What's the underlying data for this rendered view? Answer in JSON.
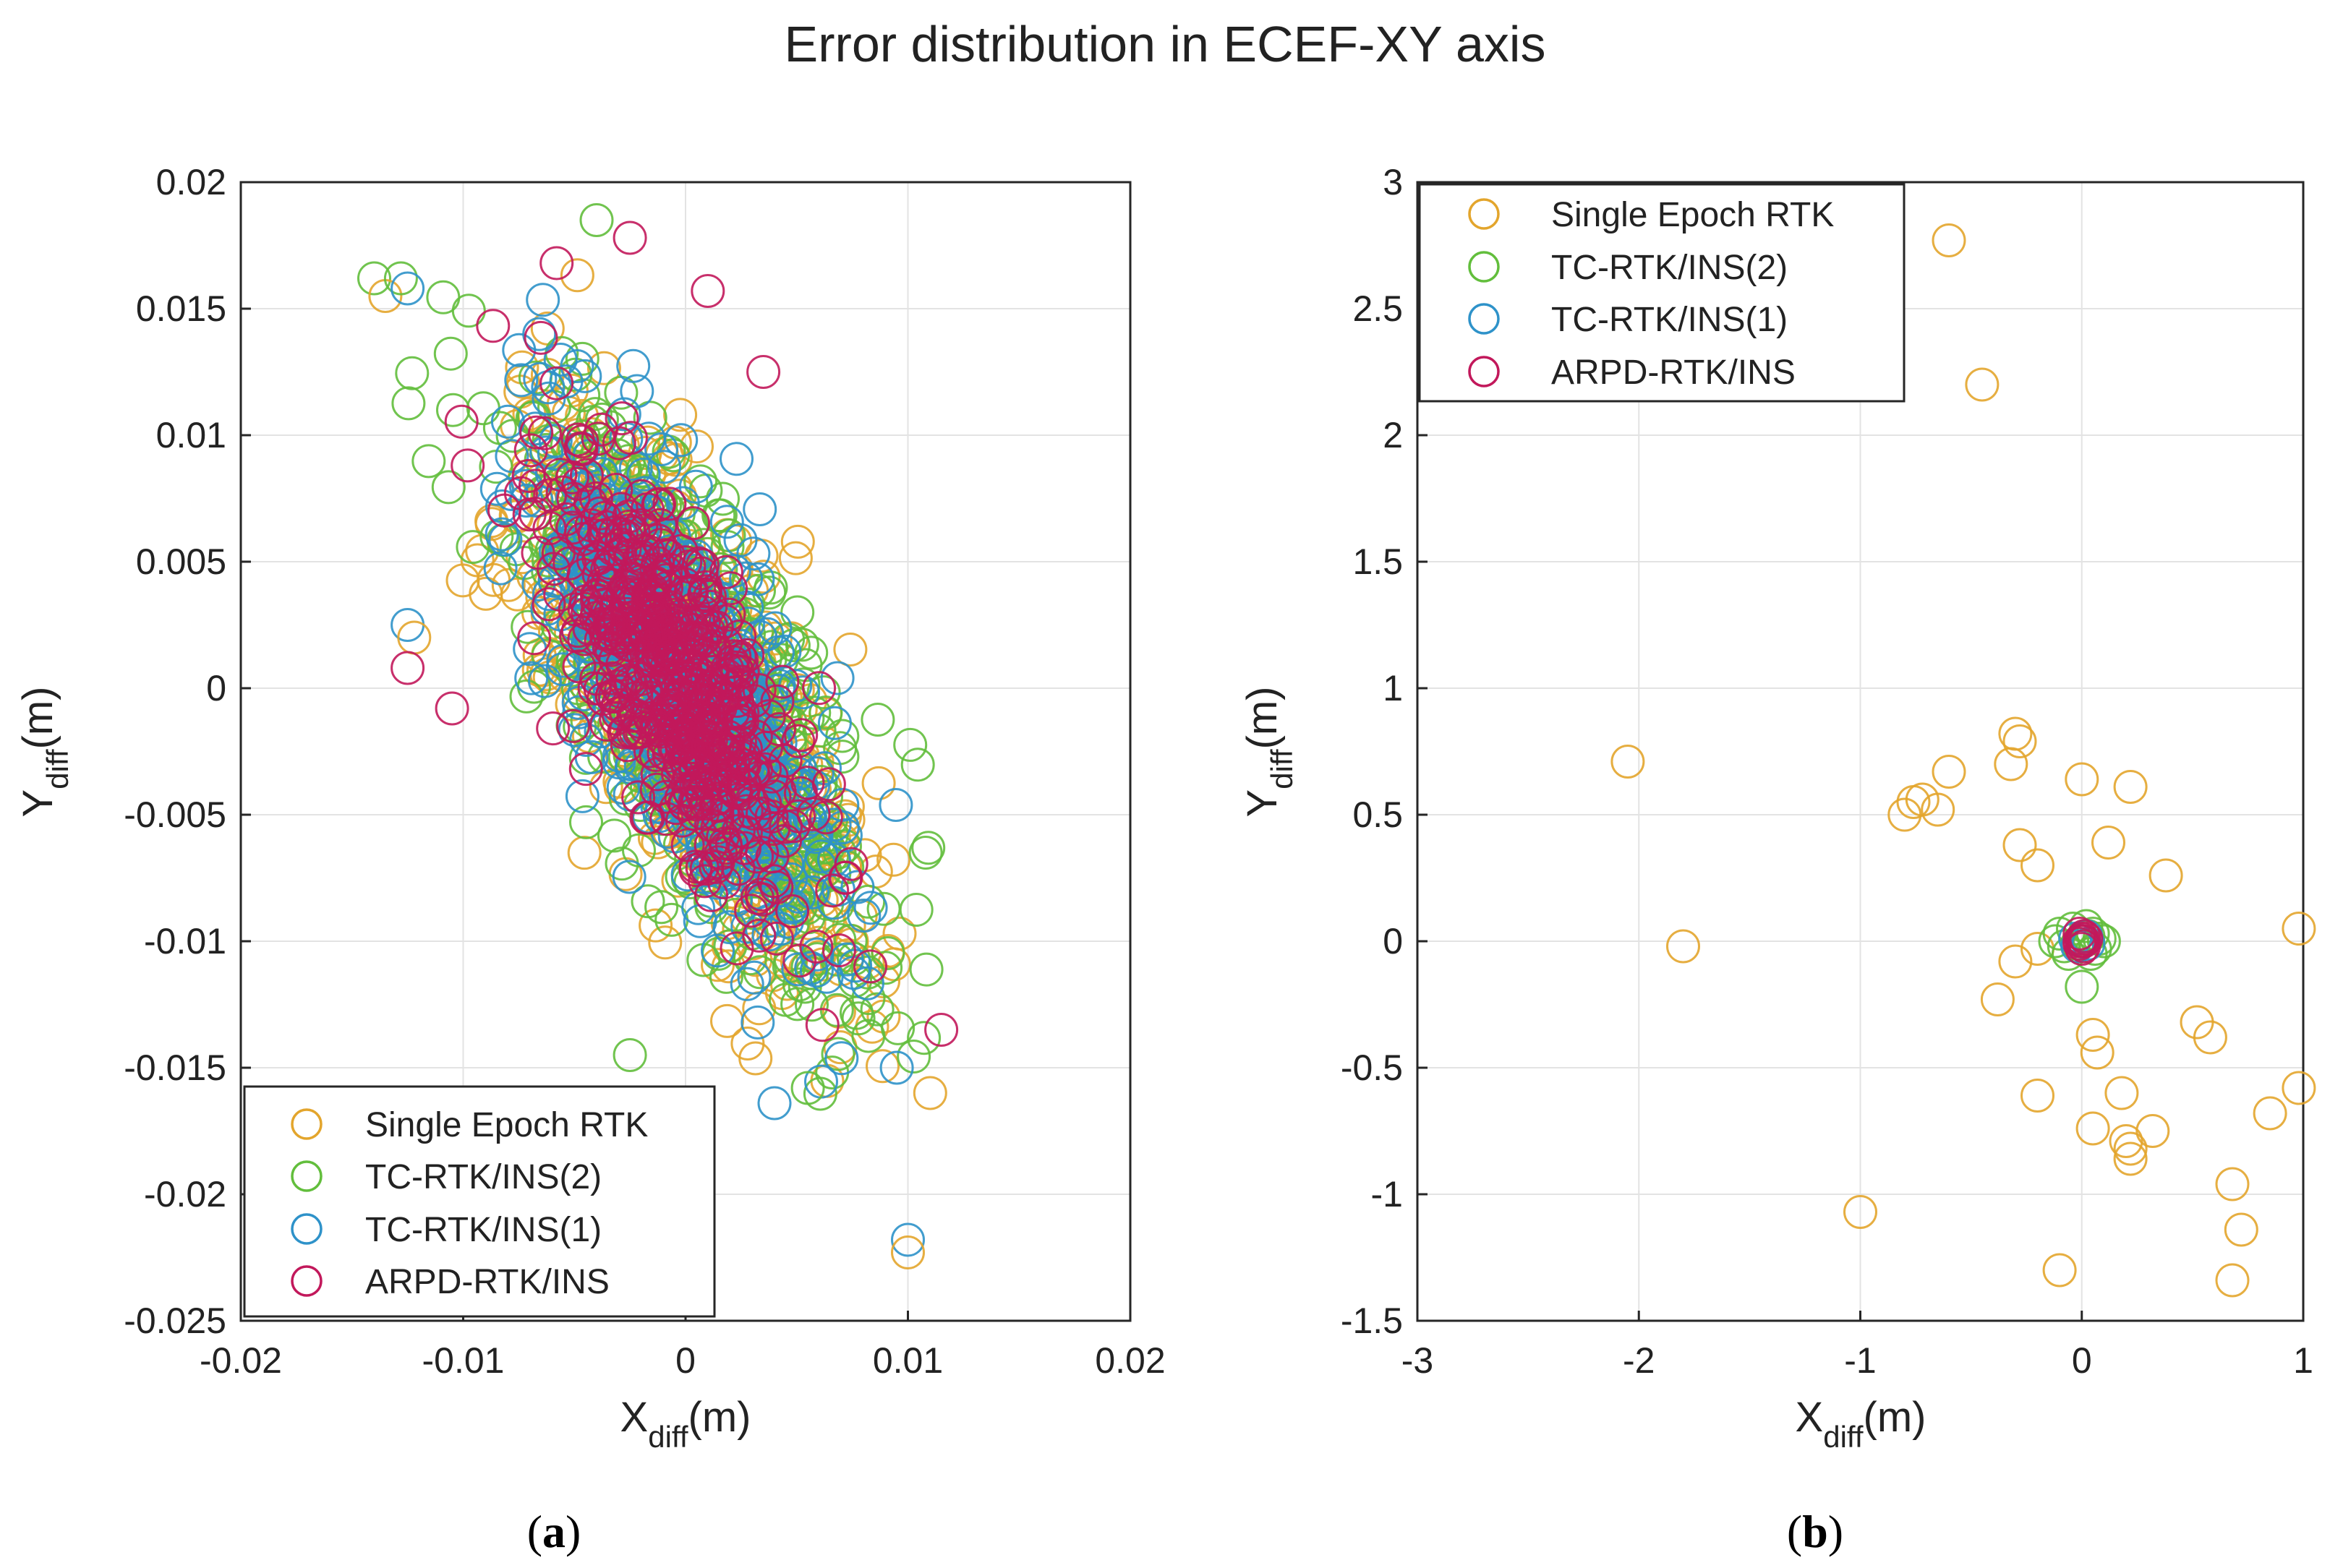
{
  "figure": {
    "title": "Error distribution in ECEF-XY axis",
    "captions": [
      {
        "open": "(",
        "letter": "a",
        "close": ")"
      },
      {
        "open": "(",
        "letter": "b",
        "close": ")"
      }
    ]
  },
  "colors": {
    "single_epoch_rtk": "#E3A52C",
    "tc_rtk_ins_2": "#62BE3C",
    "tc_rtk_ins_1": "#2E92C9",
    "arpd_rtk_ins": "#C2185B",
    "grid": "#e3e3e3",
    "axis": "#262626"
  },
  "chart_data": [
    {
      "type": "scatter",
      "panel": "a",
      "title": "",
      "xlabel": {
        "main": "X",
        "sub": "diff",
        "unit": "(m)"
      },
      "ylabel": {
        "main": "Y",
        "sub": "diff",
        "unit": "(m)"
      },
      "xlim": [
        -0.02,
        0.02
      ],
      "ylim": [
        -0.025,
        0.02
      ],
      "xticks": [
        -0.02,
        -0.01,
        0,
        0.01,
        0.02
      ],
      "xtick_labels": [
        "-0.02",
        "-0.01",
        "0",
        "0.01",
        "0.02"
      ],
      "yticks": [
        -0.025,
        -0.02,
        -0.015,
        -0.01,
        -0.005,
        0,
        0.005,
        0.01,
        0.015,
        0.02
      ],
      "ytick_labels": [
        "-0.025",
        "-0.02",
        "-0.015",
        "-0.01",
        "-0.005",
        "0",
        "0.005",
        "0.01",
        "0.015",
        "0.02"
      ],
      "grid": true,
      "legend_position": "bottom-left",
      "legend": [
        "Single Epoch RTK",
        "TC-RTK/INS(2)",
        "TC-RTK/INS(1)",
        "ARPD-RTK/INS"
      ],
      "cloud": {
        "description_note": "dense elliptical point cloud per series, estimated from the figure",
        "series": [
          {
            "name": "Single Epoch RTK",
            "color_key": "single_epoch_rtk",
            "n": 700,
            "mean": [
              0.0,
              0.0
            ],
            "sd_major": 0.0062,
            "sd_minor": 0.0023,
            "angle_deg": -60,
            "seed": 11
          },
          {
            "name": "TC-RTK/INS(2)",
            "color_key": "tc_rtk_ins_2",
            "n": 700,
            "mean": [
              0.0,
              0.0
            ],
            "sd_major": 0.0062,
            "sd_minor": 0.0023,
            "angle_deg": -60,
            "seed": 23
          },
          {
            "name": "TC-RTK/INS(1)",
            "color_key": "tc_rtk_ins_1",
            "n": 650,
            "mean": [
              0.0,
              0.0
            ],
            "sd_major": 0.0057,
            "sd_minor": 0.0021,
            "angle_deg": -60,
            "seed": 37
          },
          {
            "name": "ARPD-RTK/INS",
            "color_key": "arpd_rtk_ins",
            "n": 600,
            "mean": [
              -0.0005,
              0.0005
            ],
            "sd_major": 0.0047,
            "sd_minor": 0.0017,
            "angle_deg": -62,
            "seed": 53
          }
        ]
      },
      "outliers": [
        {
          "series": "TC-RTK/INS(2)",
          "x": -0.014,
          "y": 0.0162
        },
        {
          "series": "Single Epoch RTK",
          "x": -0.0135,
          "y": 0.0155
        },
        {
          "series": "TC-RTK/INS(2)",
          "x": -0.0128,
          "y": 0.0162
        },
        {
          "series": "TC-RTK/INS(1)",
          "x": -0.0125,
          "y": 0.0158
        },
        {
          "series": "TC-RTK/INS(2)",
          "x": -0.004,
          "y": 0.0185
        },
        {
          "series": "ARPD-RTK/INS",
          "x": -0.0025,
          "y": 0.0178
        },
        {
          "series": "ARPD-RTK/INS",
          "x": 0.001,
          "y": 0.0157
        },
        {
          "series": "ARPD-RTK/INS",
          "x": -0.0058,
          "y": 0.0168
        },
        {
          "series": "TC-RTK/INS(1)",
          "x": -0.0125,
          "y": 0.0025
        },
        {
          "series": "Single Epoch RTK",
          "x": -0.0122,
          "y": 0.002
        },
        {
          "series": "ARPD-RTK/INS",
          "x": -0.0125,
          "y": 0.0008
        },
        {
          "series": "ARPD-RTK/INS",
          "x": -0.0105,
          "y": -0.0008
        },
        {
          "series": "TC-RTK/INS(1)",
          "x": 0.01,
          "y": -0.0218
        },
        {
          "series": "Single Epoch RTK",
          "x": 0.01,
          "y": -0.0223
        },
        {
          "series": "ARPD-RTK/INS",
          "x": 0.0115,
          "y": -0.0135
        },
        {
          "series": "Single Epoch RTK",
          "x": 0.011,
          "y": -0.016
        },
        {
          "series": "TC-RTK/INS(1)",
          "x": 0.0095,
          "y": -0.015
        },
        {
          "series": "TC-RTK/INS(2)",
          "x": 0.0055,
          "y": -0.0158
        },
        {
          "series": "TC-RTK/INS(1)",
          "x": 0.004,
          "y": -0.0164
        },
        {
          "series": "TC-RTK/INS(2)",
          "x": -0.0025,
          "y": -0.0145
        },
        {
          "series": "ARPD-RTK/INS",
          "x": 0.0035,
          "y": 0.0125
        },
        {
          "series": "TC-RTK/INS(2)",
          "x": 0.0108,
          "y": -0.0065
        }
      ]
    },
    {
      "type": "scatter",
      "panel": "b",
      "title": "",
      "xlabel": {
        "main": "X",
        "sub": "diff",
        "unit": "(m)"
      },
      "ylabel": {
        "main": "Y",
        "sub": "diff",
        "unit": "(m)"
      },
      "xlim": [
        -3,
        1
      ],
      "ylim": [
        -1.5,
        3
      ],
      "xticks": [
        -3,
        -2,
        -1,
        0,
        1
      ],
      "xtick_labels": [
        "-3",
        "-2",
        "-1",
        "0",
        "1"
      ],
      "yticks": [
        -1.5,
        -1,
        -0.5,
        0,
        0.5,
        1,
        1.5,
        2,
        2.5,
        3
      ],
      "ytick_labels": [
        "-1.5",
        "-1",
        "-0.5",
        "0",
        "0.5",
        "1",
        "1.5",
        "2",
        "2.5",
        "3"
      ],
      "grid": true,
      "legend_position": "top-left",
      "legend": [
        "Single Epoch RTK",
        "TC-RTK/INS(2)",
        "TC-RTK/INS(1)",
        "ARPD-RTK/INS"
      ],
      "series": [
        {
          "name": "Single Epoch RTK",
          "color_key": "single_epoch_rtk",
          "points": [
            [
              -0.6,
              2.77
            ],
            [
              -0.45,
              2.2
            ],
            [
              -2.05,
              0.71
            ],
            [
              -1.8,
              -0.02
            ],
            [
              -0.3,
              0.82
            ],
            [
              -0.28,
              0.79
            ],
            [
              -0.32,
              0.7
            ],
            [
              0.0,
              0.64
            ],
            [
              0.22,
              0.61
            ],
            [
              -0.6,
              0.67
            ],
            [
              -0.72,
              0.56
            ],
            [
              -0.76,
              0.55
            ],
            [
              -0.8,
              0.5
            ],
            [
              -0.65,
              0.52
            ],
            [
              -0.28,
              0.38
            ],
            [
              -0.2,
              0.3
            ],
            [
              0.12,
              0.39
            ],
            [
              0.38,
              0.26
            ],
            [
              0.98,
              0.05
            ],
            [
              -0.2,
              -0.03
            ],
            [
              -0.3,
              -0.08
            ],
            [
              -0.38,
              -0.23
            ],
            [
              0.05,
              -0.37
            ],
            [
              0.07,
              -0.44
            ],
            [
              0.18,
              -0.6
            ],
            [
              -0.2,
              -0.61
            ],
            [
              0.05,
              -0.74
            ],
            [
              0.2,
              -0.79
            ],
            [
              0.22,
              -0.82
            ],
            [
              0.22,
              -0.86
            ],
            [
              0.32,
              -0.75
            ],
            [
              0.52,
              -0.32
            ],
            [
              0.58,
              -0.38
            ],
            [
              0.98,
              -0.58
            ],
            [
              0.85,
              -0.68
            ],
            [
              0.68,
              -0.96
            ],
            [
              0.72,
              -1.14
            ],
            [
              0.68,
              -1.34
            ],
            [
              -1.0,
              -1.07
            ],
            [
              -0.1,
              -1.3
            ]
          ]
        },
        {
          "name": "TC-RTK/INS(2)",
          "color_key": "tc_rtk_ins_2",
          "points": [
            [
              -0.1,
              0.03
            ],
            [
              0.05,
              0.03
            ],
            [
              0.08,
              0.01
            ],
            [
              -0.08,
              -0.02
            ],
            [
              0.06,
              -0.03
            ],
            [
              0.02,
              0.06
            ],
            [
              -0.04,
              0.05
            ],
            [
              -0.06,
              -0.05
            ],
            [
              0.04,
              -0.05
            ],
            [
              0.0,
              -0.18
            ],
            [
              0.1,
              0.0
            ],
            [
              -0.12,
              0.0
            ],
            [
              0.03,
              0.02
            ],
            [
              -0.02,
              -0.01
            ]
          ]
        },
        {
          "name": "TC-RTK/INS(1)",
          "color_key": "tc_rtk_ins_1",
          "points": [
            [
              0.0,
              0.0
            ],
            [
              0.02,
              0.02
            ],
            [
              -0.02,
              -0.02
            ],
            [
              0.03,
              -0.01
            ],
            [
              -0.03,
              0.01
            ]
          ]
        },
        {
          "name": "ARPD-RTK/INS",
          "color_key": "arpd_rtk_ins",
          "points": [
            [
              0.0,
              0.0
            ],
            [
              0.01,
              0.02
            ],
            [
              -0.01,
              -0.01
            ],
            [
              0.0,
              0.01
            ],
            [
              0.01,
              -0.02
            ],
            [
              -0.01,
              0.03
            ],
            [
              0.01,
              0.0
            ],
            [
              0.0,
              -0.03
            ],
            [
              -0.01,
              0.0
            ],
            [
              0.02,
              0.01
            ]
          ]
        }
      ]
    }
  ]
}
